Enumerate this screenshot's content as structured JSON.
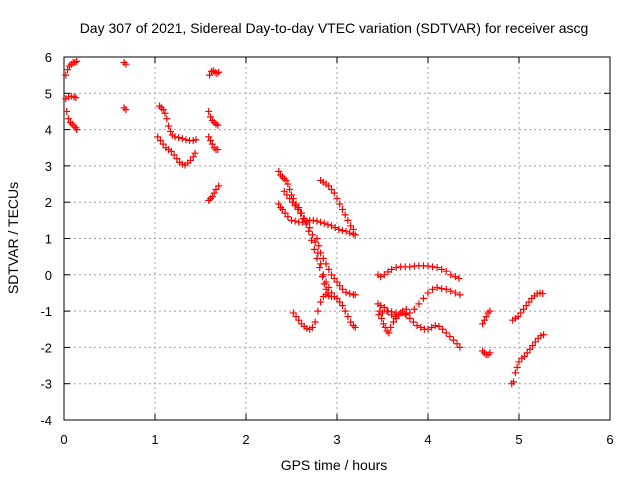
{
  "chart_data": {
    "type": "scatter",
    "title": "Day 307 of 2021, Sidereal Day-to-day VTEC variation (SDTVAR) for receiver ascg",
    "xlabel": "GPS time / hours",
    "ylabel": "SDTVAR / TECUs",
    "xlim": [
      0,
      6
    ],
    "ylim": [
      -4,
      6
    ],
    "xticks": [
      "0",
      "1",
      "2",
      "3",
      "4",
      "5",
      "6"
    ],
    "yticks": [
      "-4",
      "-3",
      "-2",
      "-1",
      "0",
      "1",
      "2",
      "3",
      "4",
      "5",
      "6"
    ],
    "grid": true,
    "marker": "plus",
    "color": "#ff0000",
    "segments": [
      [
        [
          0.02,
          5.5
        ],
        [
          0.04,
          5.65
        ],
        [
          0.06,
          5.75
        ],
        [
          0.08,
          5.8
        ],
        [
          0.1,
          5.85
        ],
        [
          0.12,
          5.85
        ],
        [
          0.14,
          5.88
        ]
      ],
      [
        [
          0.02,
          4.85
        ],
        [
          0.05,
          4.9
        ],
        [
          0.08,
          4.92
        ],
        [
          0.11,
          4.9
        ],
        [
          0.13,
          4.88
        ]
      ],
      [
        [
          0.03,
          4.5
        ],
        [
          0.05,
          4.3
        ],
        [
          0.07,
          4.2
        ],
        [
          0.09,
          4.15
        ],
        [
          0.11,
          4.1
        ],
        [
          0.13,
          4.05
        ],
        [
          0.14,
          4.0
        ]
      ],
      [
        [
          0.66,
          5.85
        ],
        [
          0.68,
          5.8
        ]
      ],
      [
        [
          0.66,
          4.6
        ],
        [
          0.68,
          4.55
        ]
      ],
      [
        [
          1.05,
          4.65
        ],
        [
          1.07,
          4.6
        ],
        [
          1.09,
          4.55
        ],
        [
          1.11,
          4.45
        ],
        [
          1.13,
          4.3
        ],
        [
          1.15,
          4.1
        ],
        [
          1.17,
          3.95
        ],
        [
          1.19,
          3.85
        ],
        [
          1.22,
          3.8
        ],
        [
          1.26,
          3.78
        ],
        [
          1.3,
          3.75
        ],
        [
          1.34,
          3.72
        ],
        [
          1.38,
          3.7
        ],
        [
          1.42,
          3.7
        ],
        [
          1.45,
          3.72
        ]
      ],
      [
        [
          1.03,
          3.8
        ],
        [
          1.06,
          3.7
        ],
        [
          1.09,
          3.6
        ],
        [
          1.12,
          3.5
        ],
        [
          1.15,
          3.45
        ],
        [
          1.18,
          3.4
        ],
        [
          1.21,
          3.3
        ],
        [
          1.24,
          3.2
        ],
        [
          1.27,
          3.1
        ],
        [
          1.3,
          3.05
        ],
        [
          1.33,
          3.02
        ],
        [
          1.36,
          3.08
        ],
        [
          1.39,
          3.15
        ],
        [
          1.42,
          3.25
        ],
        [
          1.44,
          3.35
        ]
      ],
      [
        [
          1.59,
          4.5
        ],
        [
          1.61,
          4.35
        ],
        [
          1.63,
          4.25
        ],
        [
          1.65,
          4.2
        ],
        [
          1.67,
          4.15
        ],
        [
          1.69,
          4.12
        ]
      ],
      [
        [
          1.6,
          5.5
        ],
        [
          1.62,
          5.6
        ],
        [
          1.64,
          5.62
        ],
        [
          1.66,
          5.58
        ],
        [
          1.68,
          5.55
        ],
        [
          1.7,
          5.58
        ]
      ],
      [
        [
          1.59,
          3.8
        ],
        [
          1.61,
          3.7
        ],
        [
          1.63,
          3.6
        ],
        [
          1.65,
          3.5
        ],
        [
          1.67,
          3.45
        ],
        [
          1.69,
          3.45
        ]
      ],
      [
        [
          1.59,
          2.05
        ],
        [
          1.61,
          2.1
        ],
        [
          1.63,
          2.15
        ],
        [
          1.65,
          2.25
        ],
        [
          1.67,
          2.35
        ],
        [
          1.7,
          2.45
        ]
      ],
      [
        [
          2.36,
          2.85
        ],
        [
          2.38,
          2.75
        ],
        [
          2.4,
          2.7
        ],
        [
          2.42,
          2.65
        ],
        [
          2.44,
          2.6
        ],
        [
          2.46,
          2.5
        ],
        [
          2.48,
          2.35
        ],
        [
          2.5,
          2.2
        ],
        [
          2.52,
          2.1
        ],
        [
          2.55,
          1.95
        ],
        [
          2.58,
          1.85
        ],
        [
          2.61,
          1.7
        ],
        [
          2.64,
          1.55
        ],
        [
          2.67,
          1.45
        ],
        [
          2.7,
          1.3
        ],
        [
          2.73,
          1.1
        ],
        [
          2.76,
          0.9
        ],
        [
          2.79,
          0.6
        ],
        [
          2.82,
          0.3
        ],
        [
          2.85,
          0.0
        ],
        [
          2.88,
          -0.2
        ],
        [
          2.91,
          -0.35
        ],
        [
          2.94,
          -0.5
        ],
        [
          2.97,
          -0.6
        ],
        [
          3.0,
          -0.65
        ],
        [
          3.03,
          -0.75
        ],
        [
          3.06,
          -0.85
        ],
        [
          3.09,
          -1.0
        ],
        [
          3.12,
          -1.15
        ],
        [
          3.15,
          -1.3
        ],
        [
          3.18,
          -1.4
        ],
        [
          3.2,
          -1.45
        ]
      ],
      [
        [
          2.36,
          1.95
        ],
        [
          2.38,
          1.85
        ],
        [
          2.4,
          1.8
        ],
        [
          2.43,
          1.7
        ],
        [
          2.46,
          1.6
        ],
        [
          2.5,
          1.5
        ],
        [
          2.54,
          1.48
        ],
        [
          2.58,
          1.45
        ],
        [
          2.62,
          1.45
        ],
        [
          2.66,
          1.48
        ],
        [
          2.7,
          1.5
        ],
        [
          2.74,
          1.5
        ],
        [
          2.78,
          1.48
        ],
        [
          2.82,
          1.45
        ],
        [
          2.86,
          1.42
        ],
        [
          2.9,
          1.38
        ],
        [
          2.94,
          1.35
        ],
        [
          2.98,
          1.3
        ],
        [
          3.02,
          1.25
        ],
        [
          3.06,
          1.22
        ],
        [
          3.1,
          1.2
        ],
        [
          3.14,
          1.15
        ],
        [
          3.18,
          1.12
        ],
        [
          3.2,
          1.1
        ]
      ],
      [
        [
          2.42,
          2.3
        ],
        [
          2.45,
          2.2
        ],
        [
          2.48,
          2.1
        ],
        [
          2.51,
          2.0
        ],
        [
          2.54,
          1.9
        ],
        [
          2.57,
          1.8
        ],
        [
          2.6,
          1.7
        ],
        [
          2.63,
          1.55
        ],
        [
          2.66,
          1.4
        ],
        [
          2.69,
          1.2
        ],
        [
          2.72,
          0.95
        ],
        [
          2.75,
          0.7
        ],
        [
          2.78,
          0.45
        ],
        [
          2.81,
          0.2
        ],
        [
          2.84,
          -0.05
        ],
        [
          2.86,
          -0.25
        ],
        [
          2.88,
          -0.4
        ],
        [
          2.9,
          -0.5
        ]
      ],
      [
        [
          2.82,
          2.6
        ],
        [
          2.85,
          2.55
        ],
        [
          2.88,
          2.5
        ],
        [
          2.91,
          2.45
        ],
        [
          2.94,
          2.35
        ],
        [
          2.97,
          2.25
        ],
        [
          3.0,
          2.1
        ],
        [
          3.03,
          1.95
        ],
        [
          3.06,
          1.8
        ],
        [
          3.09,
          1.65
        ],
        [
          3.12,
          1.5
        ],
        [
          3.15,
          1.35
        ],
        [
          3.18,
          1.25
        ]
      ],
      [
        [
          2.78,
          1.0
        ],
        [
          2.8,
          0.8
        ],
        [
          2.82,
          0.6
        ],
        [
          2.85,
          0.45
        ],
        [
          2.88,
          0.3
        ],
        [
          2.91,
          0.15
        ],
        [
          2.94,
          0.0
        ],
        [
          2.97,
          -0.1
        ],
        [
          3.0,
          -0.2
        ],
        [
          3.03,
          -0.3
        ],
        [
          3.06,
          -0.4
        ],
        [
          3.1,
          -0.48
        ],
        [
          3.14,
          -0.52
        ],
        [
          3.18,
          -0.55
        ],
        [
          3.2,
          -0.55
        ]
      ],
      [
        [
          2.52,
          -1.05
        ],
        [
          2.55,
          -1.15
        ],
        [
          2.58,
          -1.25
        ],
        [
          2.61,
          -1.35
        ],
        [
          2.64,
          -1.42
        ],
        [
          2.67,
          -1.48
        ],
        [
          2.7,
          -1.5
        ],
        [
          2.73,
          -1.45
        ],
        [
          2.76,
          -1.3
        ],
        [
          2.79,
          -1.0
        ],
        [
          2.82,
          -0.75
        ],
        [
          2.85,
          -0.6
        ],
        [
          2.88,
          -0.55
        ],
        [
          2.91,
          -0.58
        ],
        [
          2.94,
          -0.6
        ]
      ],
      [
        [
          3.45,
          -0.8
        ],
        [
          3.47,
          -1.0
        ],
        [
          3.49,
          -1.2
        ],
        [
          3.51,
          -1.35
        ],
        [
          3.53,
          -1.45
        ],
        [
          3.55,
          -1.55
        ],
        [
          3.57,
          -1.6
        ],
        [
          3.59,
          -1.45
        ],
        [
          3.62,
          -1.3
        ],
        [
          3.65,
          -1.2
        ],
        [
          3.68,
          -1.1
        ],
        [
          3.72,
          -1.05
        ],
        [
          3.76,
          -1.1
        ],
        [
          3.8,
          -1.2
        ],
        [
          3.84,
          -1.3
        ],
        [
          3.88,
          -1.4
        ],
        [
          3.92,
          -1.45
        ],
        [
          3.96,
          -1.5
        ],
        [
          4.0,
          -1.5
        ],
        [
          4.04,
          -1.45
        ],
        [
          4.08,
          -1.4
        ],
        [
          4.12,
          -1.42
        ],
        [
          4.16,
          -1.5
        ],
        [
          4.2,
          -1.6
        ],
        [
          4.24,
          -1.7
        ],
        [
          4.28,
          -1.8
        ],
        [
          4.32,
          -1.9
        ],
        [
          4.35,
          -2.0
        ]
      ],
      [
        [
          3.45,
          0.0
        ],
        [
          3.48,
          -0.05
        ],
        [
          3.52,
          0.0
        ],
        [
          3.56,
          0.08
        ],
        [
          3.6,
          0.15
        ],
        [
          3.65,
          0.2
        ],
        [
          3.7,
          0.22
        ],
        [
          3.75,
          0.22
        ],
        [
          3.8,
          0.22
        ],
        [
          3.85,
          0.24
        ],
        [
          3.9,
          0.25
        ],
        [
          3.95,
          0.25
        ],
        [
          4.0,
          0.24
        ],
        [
          4.05,
          0.22
        ],
        [
          4.1,
          0.2
        ],
        [
          4.15,
          0.15
        ],
        [
          4.2,
          0.1
        ],
        [
          4.25,
          0.0
        ],
        [
          4.3,
          -0.05
        ],
        [
          4.34,
          -0.1
        ]
      ],
      [
        [
          3.46,
          -1.1
        ],
        [
          3.5,
          -1.05
        ],
        [
          3.55,
          -1.0
        ],
        [
          3.6,
          -1.02
        ],
        [
          3.65,
          -1.05
        ],
        [
          3.7,
          -1.05
        ],
        [
          3.75,
          -1.08
        ],
        [
          3.8,
          -1.05
        ],
        [
          3.85,
          -0.95
        ],
        [
          3.9,
          -0.8
        ],
        [
          3.95,
          -0.65
        ],
        [
          4.0,
          -0.5
        ],
        [
          4.05,
          -0.4
        ],
        [
          4.1,
          -0.35
        ],
        [
          4.15,
          -0.38
        ],
        [
          4.2,
          -0.4
        ],
        [
          4.25,
          -0.45
        ],
        [
          4.3,
          -0.5
        ],
        [
          4.35,
          -0.55
        ]
      ],
      [
        [
          3.48,
          -0.85
        ],
        [
          3.52,
          -0.9
        ],
        [
          3.56,
          -1.0
        ],
        [
          3.6,
          -1.1
        ],
        [
          3.64,
          -1.15
        ],
        [
          3.68,
          -1.1
        ],
        [
          3.72,
          -1.0
        ],
        [
          3.76,
          -0.95
        ]
      ],
      [
        [
          4.6,
          -2.1
        ],
        [
          4.62,
          -2.15
        ],
        [
          4.64,
          -2.2
        ],
        [
          4.66,
          -2.2
        ],
        [
          4.68,
          -2.15
        ]
      ],
      [
        [
          4.6,
          -1.35
        ],
        [
          4.62,
          -1.25
        ],
        [
          4.64,
          -1.15
        ],
        [
          4.66,
          -1.05
        ],
        [
          4.68,
          -1.0
        ]
      ],
      [
        [
          4.92,
          -3.0
        ],
        [
          4.94,
          -2.95
        ],
        [
          4.96,
          -2.7
        ],
        [
          4.98,
          -2.55
        ],
        [
          5.0,
          -2.4
        ],
        [
          5.03,
          -2.3
        ],
        [
          5.06,
          -2.25
        ],
        [
          5.09,
          -2.15
        ],
        [
          5.12,
          -2.05
        ],
        [
          5.15,
          -1.95
        ],
        [
          5.18,
          -1.85
        ],
        [
          5.21,
          -1.75
        ],
        [
          5.24,
          -1.68
        ],
        [
          5.27,
          -1.65
        ]
      ],
      [
        [
          4.93,
          -1.25
        ],
        [
          4.96,
          -1.2
        ],
        [
          4.99,
          -1.15
        ],
        [
          5.02,
          -1.05
        ],
        [
          5.05,
          -0.95
        ],
        [
          5.08,
          -0.85
        ],
        [
          5.11,
          -0.75
        ],
        [
          5.14,
          -0.65
        ],
        [
          5.17,
          -0.58
        ],
        [
          5.2,
          -0.52
        ],
        [
          5.23,
          -0.5
        ],
        [
          5.26,
          -0.52
        ]
      ]
    ]
  }
}
